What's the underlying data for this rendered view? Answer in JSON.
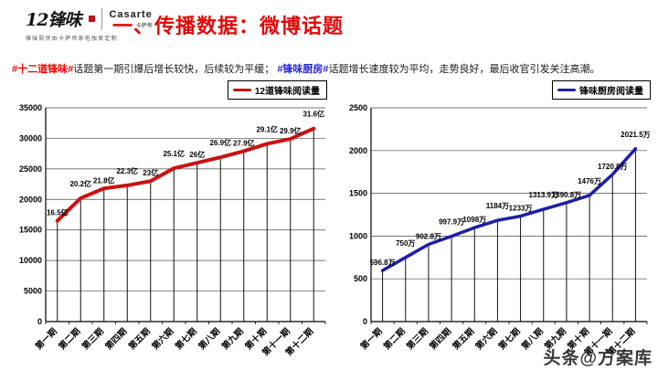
{
  "header": {
    "logo_text": "12锋味",
    "logo_tagline": "锋味厨房由卡萨帝家电独家定制",
    "casarte": "Casarte",
    "casarte_sub": "卡萨帝",
    "title": "一、传播数据：微博话题",
    "title_color": "#e30808"
  },
  "subtitle": {
    "tag1": "#十二道锋味#",
    "tag1_color": "#fe0000",
    "text1": "话题第一期引爆后增长较快，后续较为平缓； ",
    "tag2": "#锋味厨房#",
    "tag2_color": "#2525d8",
    "text2": "话题增长速度较为平均，走势良好，最后收官引发关注高潮。"
  },
  "watermark": "头条@方案库",
  "chart_data": [
    {
      "type": "line",
      "legend": "12道锋味阅读量",
      "color": "#cc1111",
      "line_width": 4,
      "categories": [
        "第一期",
        "第二期",
        "第三期",
        "第四期",
        "第五期",
        "第六期",
        "第七期",
        "第八期",
        "第九期",
        "第十期",
        "第十一期",
        "第十二期"
      ],
      "values": [
        16500,
        20200,
        21800,
        22300,
        23000,
        25100,
        26000,
        26900,
        27900,
        29100,
        29900,
        31600
      ],
      "point_labels": [
        "16.5亿",
        "20.2亿",
        "21.8亿",
        "22.3亿",
        "23亿",
        "25.1亿",
        "26亿",
        "26.9亿",
        "27.9亿",
        "29.1亿",
        "29.9亿",
        "31.6亿"
      ],
      "ylim": [
        0,
        35000
      ],
      "ytick_step": 5000,
      "grid": true,
      "drop_lines": true,
      "legend_position": "top-right",
      "xlabel": "",
      "ylabel": ""
    },
    {
      "type": "line",
      "legend": "锋味厨房阅读量",
      "color": "#1f1fa8",
      "line_width": 3.5,
      "categories": [
        "第一期",
        "第二期",
        "第三期",
        "第四期",
        "第五期",
        "第六期",
        "第七期",
        "第八期",
        "第九期",
        "第十期",
        "第十一期",
        "第十二期"
      ],
      "values": [
        596.8,
        750,
        902.8,
        997.9,
        1098,
        1184,
        1233,
        1313.9,
        1390.8,
        1476,
        1720.8,
        2021.5
      ],
      "point_labels": [
        "596.8万",
        "750万",
        "902.8万",
        "997.9万",
        "1098万",
        "1184万",
        "1233万",
        "1313.9万",
        "1390.8万",
        "1476万",
        "1720.8万",
        "2021.5万"
      ],
      "ylim": [
        0,
        2500
      ],
      "ytick_step": 500,
      "grid": true,
      "drop_lines": true,
      "legend_position": "top-right",
      "xlabel": "",
      "ylabel": ""
    }
  ]
}
